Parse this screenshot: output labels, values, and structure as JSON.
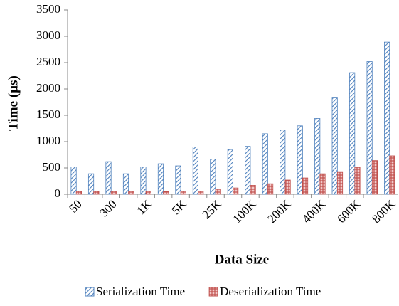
{
  "chart_data": {
    "type": "bar",
    "x_label": "Data Size",
    "y_label": "Time (µs)",
    "categories": [
      "50",
      null,
      "300",
      null,
      "1K",
      null,
      "5K",
      null,
      "25K",
      null,
      "100K",
      null,
      "200K",
      null,
      "400K",
      null,
      "600K",
      null,
      "800K"
    ],
    "series": [
      {
        "name": "Serialization Time",
        "color": "#4f81bd",
        "values": [
          520,
          390,
          620,
          390,
          520,
          580,
          540,
          900,
          670,
          850,
          910,
          1150,
          1220,
          1300,
          1440,
          1830,
          2310,
          2520,
          2890
        ]
      },
      {
        "name": "Deserialization Time",
        "color": "#c0504d",
        "values": [
          60,
          60,
          60,
          60,
          60,
          50,
          60,
          60,
          100,
          120,
          170,
          200,
          270,
          310,
          390,
          430,
          510,
          640,
          730
        ]
      }
    ],
    "ylim": [
      0,
      3500
    ],
    "yticks": [
      0,
      500,
      1000,
      1500,
      2000,
      2500,
      3000,
      3500
    ],
    "legend": "bottom"
  }
}
